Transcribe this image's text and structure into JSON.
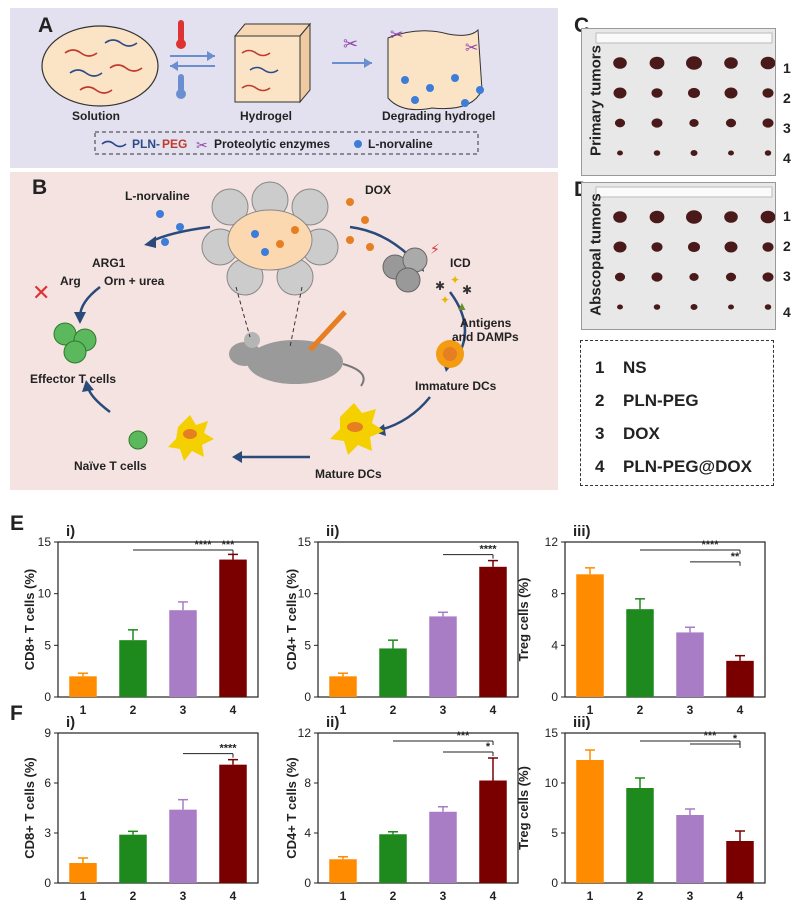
{
  "panels": {
    "A": {
      "letter": "A",
      "states": [
        "Solution",
        "Hydrogel",
        "Degrading  hydrogel"
      ],
      "legend": [
        "PLN-",
        "PEG",
        "Proteolytic enzymes",
        "L-norvaline"
      ]
    },
    "B": {
      "letter": "B",
      "labels": {
        "lnorvaline": "L-norvaline",
        "dox": "DOX",
        "arg1": "ARG1",
        "arg": "Arg",
        "orn": "Orn + urea",
        "icd": "ICD",
        "antigens": "Antigens",
        "damps": "and DAMPs",
        "immature": "Immature DCs",
        "mature": "Mature DCs",
        "naive": "Naïve T cells",
        "effector": "Effector T cells"
      }
    },
    "C": {
      "letter": "C",
      "side_label": "Primary tumors",
      "rows": [
        "1",
        "2",
        "3",
        "4"
      ]
    },
    "D": {
      "letter": "D",
      "side_label": "Abscopal tumors",
      "rows": [
        "1",
        "2",
        "3",
        "4"
      ]
    },
    "legend": [
      {
        "num": "1",
        "name": "NS"
      },
      {
        "num": "2",
        "name": "PLN-PEG"
      },
      {
        "num": "3",
        "name": "DOX"
      },
      {
        "num": "4",
        "name": "PLN-PEG@DOX"
      }
    ],
    "E": {
      "letter": "E"
    },
    "F": {
      "letter": "F"
    }
  },
  "colors": {
    "group1": "#ff8c00",
    "group2": "#1e8a1e",
    "group3": "#a97cc6",
    "group4": "#7a0000",
    "panelA_bg": "#e3e0ef",
    "panelB_bg": "#f5e3e1"
  },
  "chart_data": [
    {
      "id": "E-i",
      "type": "bar",
      "label": "i)",
      "ylabel": "CD8+ T cells (%)",
      "categories": [
        "1",
        "2",
        "3",
        "4"
      ],
      "values": [
        2.0,
        5.5,
        8.4,
        13.3
      ],
      "errors": [
        0.3,
        1.0,
        0.8,
        0.5
      ],
      "ylim": [
        0,
        15
      ],
      "yticks": [
        0,
        5,
        10,
        15
      ],
      "sig": [
        {
          "from": 2,
          "to": 4,
          "text": "****"
        },
        {
          "from": 3,
          "to": 4,
          "text": "***"
        }
      ]
    },
    {
      "id": "E-ii",
      "type": "bar",
      "label": "ii)",
      "ylabel": "CD4+ T cells (%)",
      "categories": [
        "1",
        "2",
        "3",
        "4"
      ],
      "values": [
        2.0,
        4.7,
        7.8,
        12.6
      ],
      "errors": [
        0.3,
        0.8,
        0.4,
        0.6
      ],
      "ylim": [
        0,
        15
      ],
      "yticks": [
        0,
        5,
        10,
        15
      ],
      "sig": [
        {
          "from": 3,
          "to": 4,
          "text": "****"
        }
      ]
    },
    {
      "id": "E-iii",
      "type": "bar",
      "label": "iii)",
      "ylabel": "Treg cells (%)",
      "categories": [
        "1",
        "2",
        "3",
        "4"
      ],
      "values": [
        9.5,
        6.8,
        5.0,
        2.8
      ],
      "errors": [
        0.5,
        0.8,
        0.4,
        0.4
      ],
      "ylim": [
        0,
        12
      ],
      "yticks": [
        0,
        4,
        8,
        12
      ],
      "sig": [
        {
          "from": 2,
          "to": 4,
          "text": "****"
        },
        {
          "from": 3,
          "to": 4,
          "text": "**"
        }
      ]
    },
    {
      "id": "F-i",
      "type": "bar",
      "label": "i)",
      "ylabel": "CD8+ T cells (%)",
      "categories": [
        "1",
        "2",
        "3",
        "4"
      ],
      "values": [
        1.2,
        2.9,
        4.4,
        7.1
      ],
      "errors": [
        0.3,
        0.2,
        0.6,
        0.3
      ],
      "ylim": [
        0,
        9
      ],
      "yticks": [
        0,
        3,
        6,
        9
      ],
      "sig": [
        {
          "from": 3,
          "to": 4,
          "text": "****"
        }
      ]
    },
    {
      "id": "F-ii",
      "type": "bar",
      "label": "ii)",
      "ylabel": "CD4+ T cells (%)",
      "categories": [
        "1",
        "2",
        "3",
        "4"
      ],
      "values": [
        1.9,
        3.9,
        5.7,
        8.2
      ],
      "errors": [
        0.2,
        0.2,
        0.4,
        1.8
      ],
      "ylim": [
        0,
        12
      ],
      "yticks": [
        0,
        4,
        8,
        12
      ],
      "sig": [
        {
          "from": 2,
          "to": 4,
          "text": "***"
        },
        {
          "from": 3,
          "to": 4,
          "text": "*"
        }
      ]
    },
    {
      "id": "F-iii",
      "type": "bar",
      "label": "iii)",
      "ylabel": "Treg cells (%)",
      "categories": [
        "1",
        "2",
        "3",
        "4"
      ],
      "values": [
        12.3,
        9.5,
        6.8,
        4.2
      ],
      "errors": [
        1.0,
        1.0,
        0.6,
        1.0
      ],
      "ylim": [
        0,
        15
      ],
      "yticks": [
        0,
        5,
        10,
        15
      ],
      "sig": [
        {
          "from": 2,
          "to": 4,
          "text": "***"
        },
        {
          "from": 3,
          "to": 4,
          "text": "*"
        }
      ]
    }
  ]
}
